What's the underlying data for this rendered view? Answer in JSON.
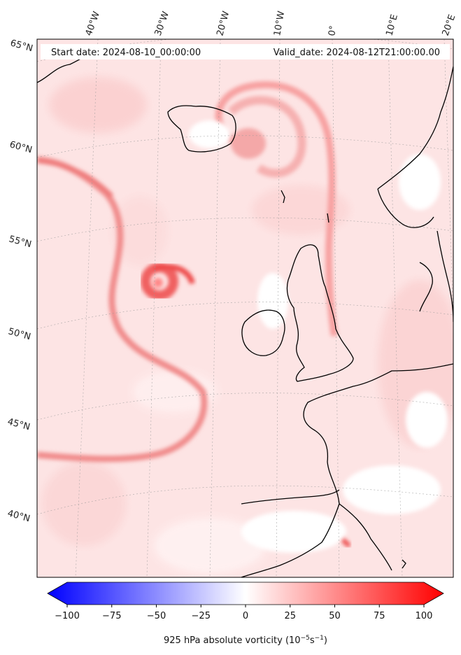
{
  "header": {
    "start_date": "Start date: 2024-08-10_00:00:00",
    "valid_date": "Valid_date: 2024-08-12T21:00:00.00"
  },
  "map": {
    "lon_labels": [
      "40°W",
      "30°W",
      "20°W",
      "10°W",
      "0°",
      "10°E",
      "20°E"
    ],
    "lat_labels": [
      "65°N",
      "60°N",
      "55°N",
      "50°N",
      "45°N",
      "40°N"
    ],
    "field_color_low": "#0000ff",
    "field_color_mid": "#ffffff",
    "field_color_high": "#ff0000",
    "coastline_color": "#000000"
  },
  "colorbar": {
    "ticks": [
      "−100",
      "−75",
      "−50",
      "−25",
      "0",
      "25",
      "50",
      "75",
      "100"
    ],
    "label_main": "925 hPa absolute vorticity (10",
    "label_exp1": "−5",
    "label_mid": "s",
    "label_exp2": "−1",
    "label_end": ")"
  }
}
